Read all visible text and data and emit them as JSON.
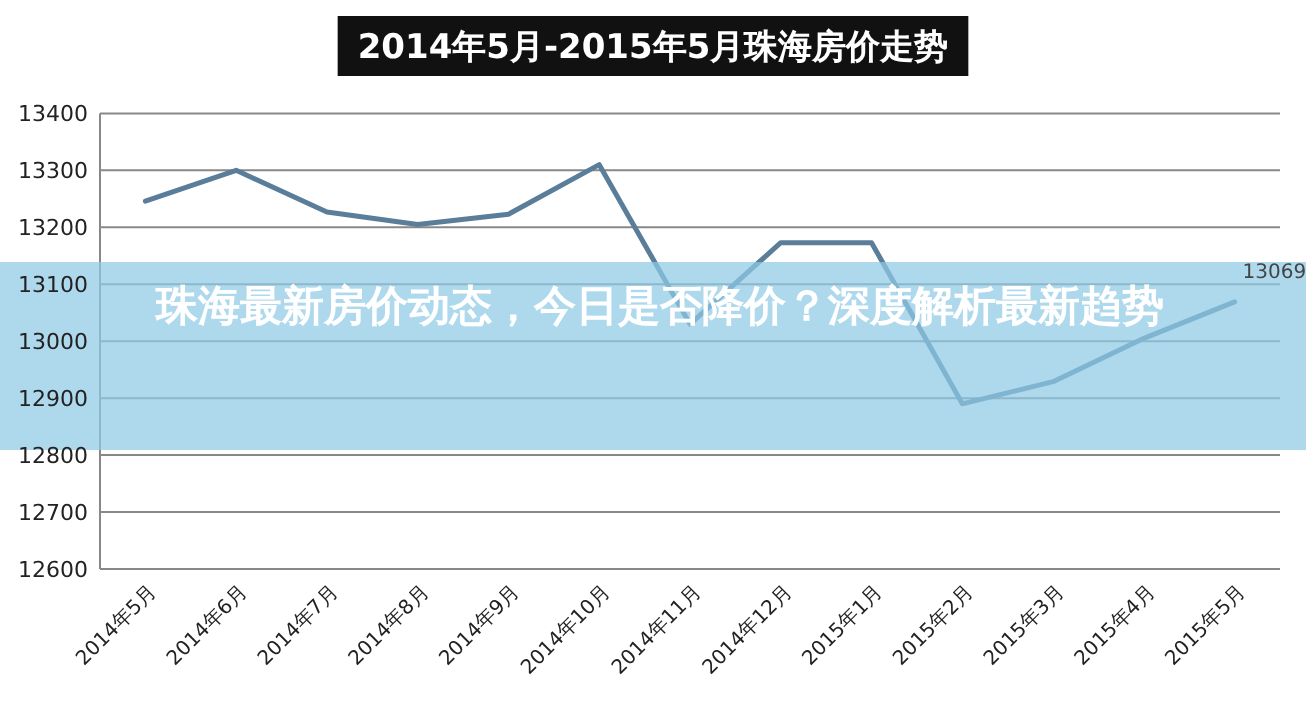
{
  "chart_data": {
    "type": "line",
    "title": "2014年5月-2015年5月珠海房价走势",
    "annotations": [
      "珠海最新房价动态，今日是否降价？深度解析最新趋势"
    ],
    "categories": [
      "2014年5月",
      "2014年6月",
      "2014年7月",
      "2014年8月",
      "2014年9月",
      "2014年10月",
      "2014年11月",
      "2014年12月",
      "2015年1月",
      "2015年2月",
      "2015年3月",
      "2015年4月",
      "2015年5月"
    ],
    "series": [
      {
        "color": "#5a7d9a",
        "values": [
          13246,
          13300,
          13227,
          13205,
          13223,
          13310,
          13030,
          13173,
          13173,
          12890,
          12929,
          13005,
          13069
        ],
        "value_labels": [
          null,
          null,
          null,
          null,
          null,
          null,
          null,
          null,
          null,
          null,
          null,
          null,
          "13069"
        ]
      }
    ],
    "ylim": [
      12600,
      13400
    ],
    "yticks": [
      12600,
      12700,
      12800,
      12900,
      13000,
      13100,
      13200,
      13300,
      13400
    ],
    "grid": "y"
  }
}
